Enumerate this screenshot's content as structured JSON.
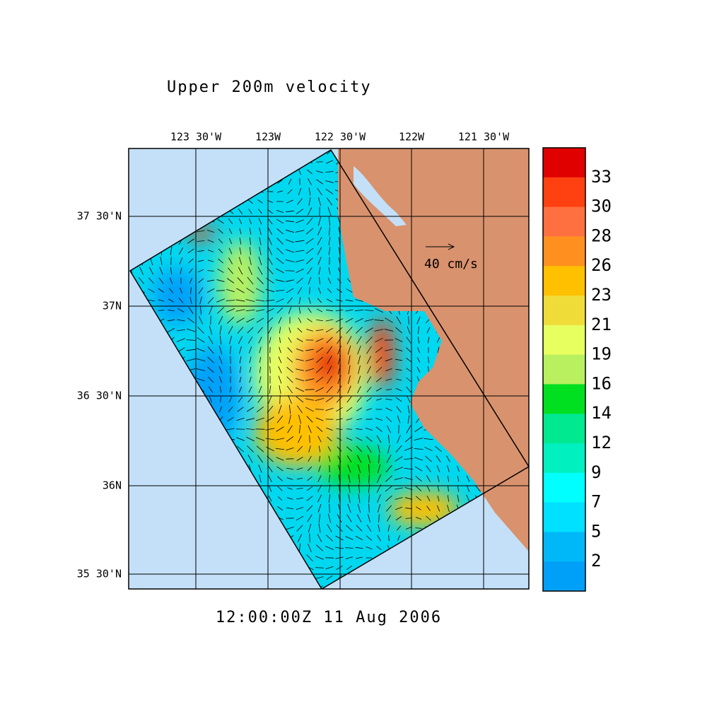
{
  "title": "Upper 200m velocity",
  "timestamp": "12:00:00Z  11 Aug 2006",
  "lon_labels": [
    "123 30'W",
    "123W",
    "122 30'W",
    "122W",
    "121 30'W"
  ],
  "lat_labels": [
    "37 30'N",
    "37N",
    "36 30'N",
    "36N",
    "35 30'N"
  ],
  "reference_vector": "40 cm/s",
  "colorbar": {
    "labels": [
      "33",
      "30",
      "28",
      "26",
      "23",
      "21",
      "19",
      "16",
      "14",
      "12",
      "9",
      "7",
      "5",
      "2"
    ],
    "colors": [
      "#e00000",
      "#ff4010",
      "#ff7040",
      "#ff9020",
      "#ffc000",
      "#f0dc38",
      "#e8ff60",
      "#b8f060",
      "#00e020",
      "#00e890",
      "#00f0c0",
      "#00ffff",
      "#00e0ff",
      "#00b8f8",
      "#00a0f8"
    ]
  }
}
